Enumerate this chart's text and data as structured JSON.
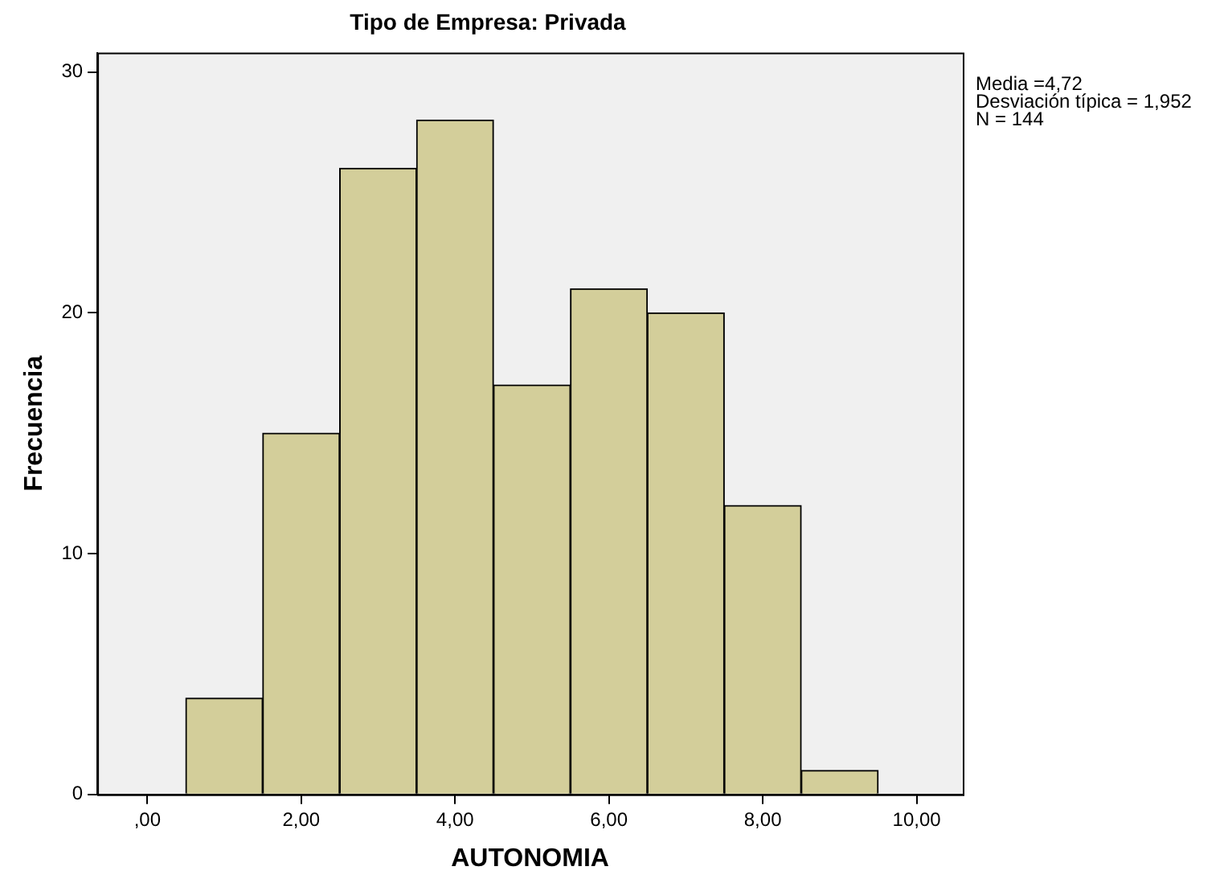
{
  "chart_data": {
    "type": "histogram",
    "title": "Tipo de Empresa: Privada",
    "xlabel": "AUTONOMIA",
    "ylabel": "Frecuencia",
    "bins": [
      0.5,
      1.5,
      2.5,
      3.5,
      4.5,
      5.5,
      6.5,
      7.5,
      8.5,
      9.5
    ],
    "values": [
      4,
      15,
      26,
      28,
      17,
      21,
      20,
      12,
      1
    ],
    "color": "#d3ce9a",
    "xlim": [
      -0.65,
      10.6
    ],
    "xticks": [
      {
        "value": 0,
        "label": ",00"
      },
      {
        "value": 2,
        "label": "2,00"
      },
      {
        "value": 4,
        "label": "4,00"
      },
      {
        "value": 6,
        "label": "6,00"
      },
      {
        "value": 8,
        "label": "8,00"
      },
      {
        "value": 10,
        "label": "10,00"
      }
    ],
    "ylim": [
      0,
      30.8
    ],
    "yticks": [
      0,
      10,
      20,
      30
    ],
    "annotations": [
      "Media =4,72",
      "Desviación típica = 1,952",
      "N = 144"
    ]
  }
}
